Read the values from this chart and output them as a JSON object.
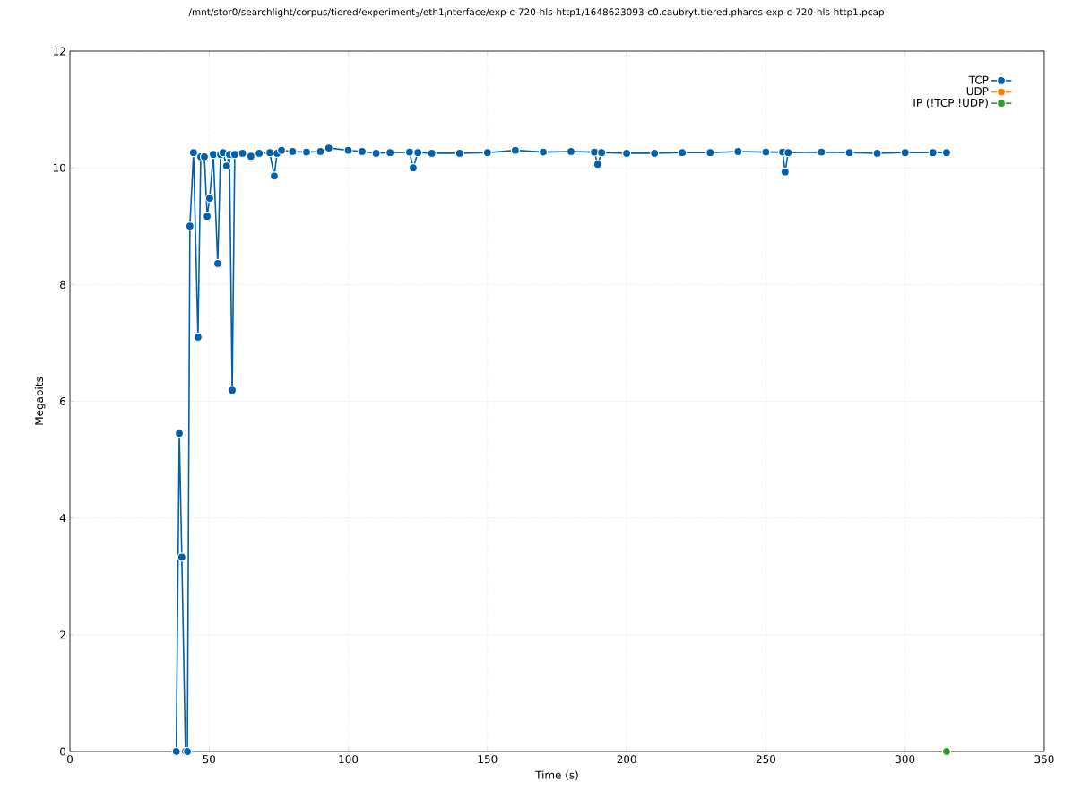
{
  "chart_data": {
    "type": "line",
    "title": "/mnt/stor0/searchlight/corpus/tiered/experiment$_{3}$/eth1$_{i}$nterface/exp-c-720-hls-http1/1648623093-c0.caubryt.tiered.pharos-exp-c-720-hls-http1.pcap",
    "xlabel": "Time (s)",
    "ylabel": "Megabits",
    "xlim": [
      0,
      350
    ],
    "ylim": [
      0,
      12
    ],
    "xticks": [
      0,
      50,
      100,
      150,
      200,
      250,
      300,
      350
    ],
    "yticks": [
      0,
      2,
      4,
      6,
      8,
      10,
      12
    ],
    "grid": true,
    "legend": "top right",
    "marker": "circle",
    "line_style": "solid",
    "series": [
      {
        "name": "TCP",
        "color": "#0060ad",
        "x": [
          38.2,
          39.3,
          40.2,
          41.5,
          42.2,
          43.1,
          44.4,
          46.0,
          47.0,
          48.3,
          49.3,
          50.2,
          51.5,
          53.1,
          54.1,
          55.0,
          56.3,
          57.3,
          58.3,
          59.2,
          62,
          65,
          68,
          71.8,
          73.4,
          74.4,
          76,
          80,
          85,
          90,
          93,
          100,
          105,
          110,
          115,
          122,
          123.3,
          125,
          130,
          140,
          150,
          160,
          170,
          180,
          188.4,
          189.6,
          191,
          200,
          210,
          220,
          230,
          240,
          250,
          256.0,
          256.9,
          258,
          270,
          280,
          290,
          300,
          310,
          314.9
        ],
        "values": [
          0,
          5.45,
          3.33,
          0,
          0,
          9.0,
          10.26,
          7.1,
          10.19,
          10.19,
          9.17,
          9.48,
          10.23,
          8.36,
          10.23,
          10.26,
          10.03,
          10.23,
          6.19,
          10.23,
          10.25,
          10.2,
          10.25,
          10.26,
          9.86,
          10.25,
          10.3,
          10.28,
          10.27,
          10.28,
          10.34,
          10.3,
          10.28,
          10.25,
          10.26,
          10.27,
          10.0,
          10.26,
          10.25,
          10.25,
          10.26,
          10.3,
          10.27,
          10.28,
          10.27,
          10.06,
          10.26,
          10.25,
          10.25,
          10.26,
          10.26,
          10.28,
          10.27,
          10.27,
          9.93,
          10.26,
          10.27,
          10.26,
          10.25,
          10.26,
          10.26,
          10.26
        ]
      },
      {
        "name": "UDP",
        "color": "#ff7f0e"
      },
      {
        "name": "IP (!TCP  !UDP)",
        "color": "#2ca02c",
        "x": [
          314.9
        ],
        "values": [
          0
        ]
      }
    ]
  }
}
